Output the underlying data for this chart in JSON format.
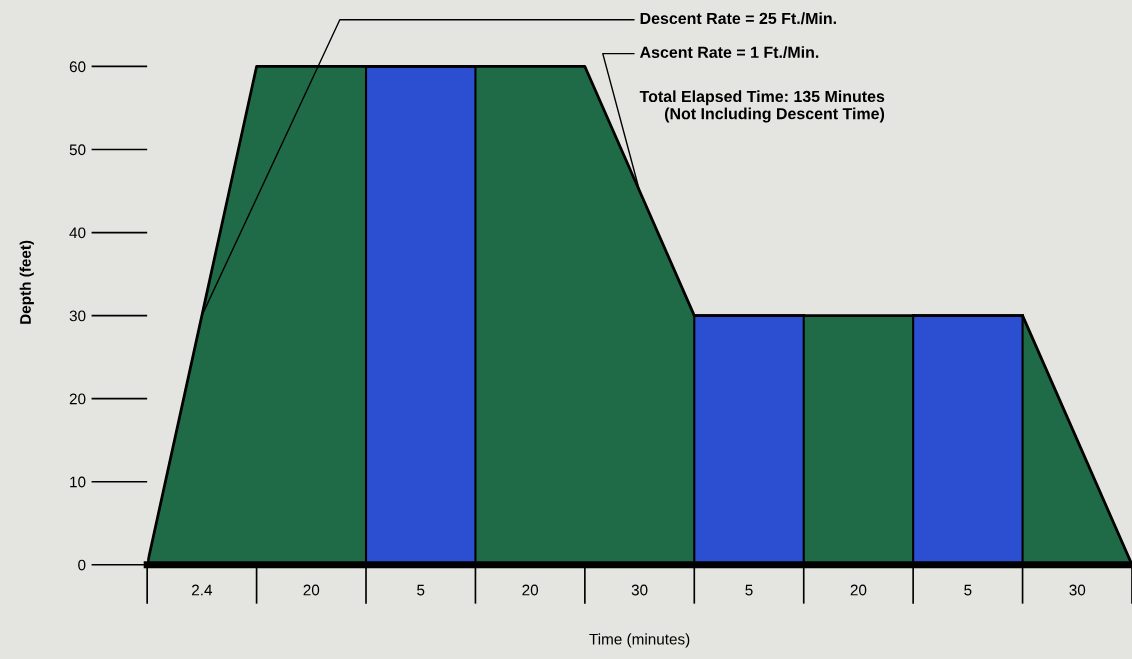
{
  "chart_data": {
    "type": "area",
    "xlabel": "Time (minutes)",
    "ylabel": "Depth (feet)",
    "categories": [
      null,
      "2.4",
      null,
      "20",
      null,
      "5",
      null,
      "20",
      null,
      "30",
      null,
      "5",
      null,
      "20",
      null,
      "5",
      null,
      "30",
      null
    ],
    "series": [
      {
        "color": "#1f6b47",
        "values": [
          0,
          30,
          60,
          60,
          60,
          60,
          60,
          60,
          60,
          45,
          30,
          30,
          30,
          30,
          30,
          30,
          30,
          15,
          0
        ]
      },
      {
        "color": "#2b4fd0",
        "values": [
          null,
          null,
          null,
          null,
          60,
          60,
          60,
          null,
          null,
          null,
          null,
          null,
          null,
          null,
          null,
          null,
          null,
          null,
          null
        ]
      },
      {
        "color": "#2b4fd0",
        "values": [
          null,
          null,
          null,
          null,
          null,
          null,
          null,
          null,
          null,
          null,
          30,
          30,
          30,
          null,
          null,
          null,
          null,
          null,
          null
        ]
      },
      {
        "color": "#2b4fd0",
        "values": [
          null,
          null,
          null,
          null,
          null,
          null,
          null,
          null,
          null,
          null,
          null,
          null,
          null,
          null,
          30,
          30,
          30,
          null,
          null
        ]
      }
    ],
    "ylim": [
      0,
      68
    ],
    "yticks": [
      0,
      10,
      20,
      30,
      40,
      50,
      60
    ],
    "annotations": [
      {
        "text": "Descent Rate = 25 Ft./Min.",
        "x": "2.4",
        "y": 30
      },
      {
        "text": "Ascent Rate = 1 Ft./Min.",
        "x": "30",
        "y": 45
      },
      "Total Elapsed Time: 135 Minutes\n(Not Including Descent Time)"
    ]
  }
}
